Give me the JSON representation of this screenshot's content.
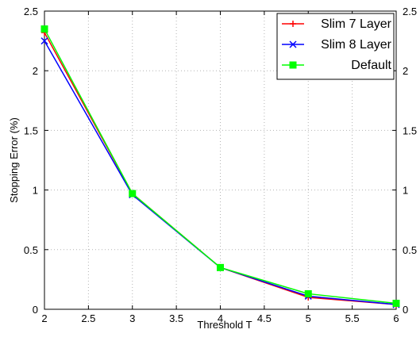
{
  "chart_data": {
    "type": "line",
    "xlabel": "Threshold T",
    "ylabel": "Stopping Error (%)",
    "xlim": [
      2,
      6
    ],
    "ylim": [
      0,
      2.5
    ],
    "xticks": [
      "2",
      "2.5",
      "3",
      "3.5",
      "4",
      "4.5",
      "5",
      "5.5",
      "6"
    ],
    "yticks": [
      "0",
      "0.5",
      "1",
      "1.5",
      "2",
      "2.5"
    ],
    "grid": true,
    "legend_position": "top-right",
    "x": [
      2,
      3,
      4,
      5,
      6
    ],
    "series": [
      {
        "name": "Slim 7 Layer",
        "color": "#ff0000",
        "marker": "plus",
        "values": [
          2.32,
          0.97,
          0.35,
          0.1,
          0.04
        ]
      },
      {
        "name": "Slim 8 Layer",
        "color": "#0000ff",
        "marker": "x",
        "values": [
          2.25,
          0.96,
          0.35,
          0.11,
          0.04
        ]
      },
      {
        "name": "Default",
        "color": "#00ff00",
        "marker": "square",
        "values": [
          2.35,
          0.97,
          0.35,
          0.13,
          0.05
        ]
      }
    ]
  }
}
